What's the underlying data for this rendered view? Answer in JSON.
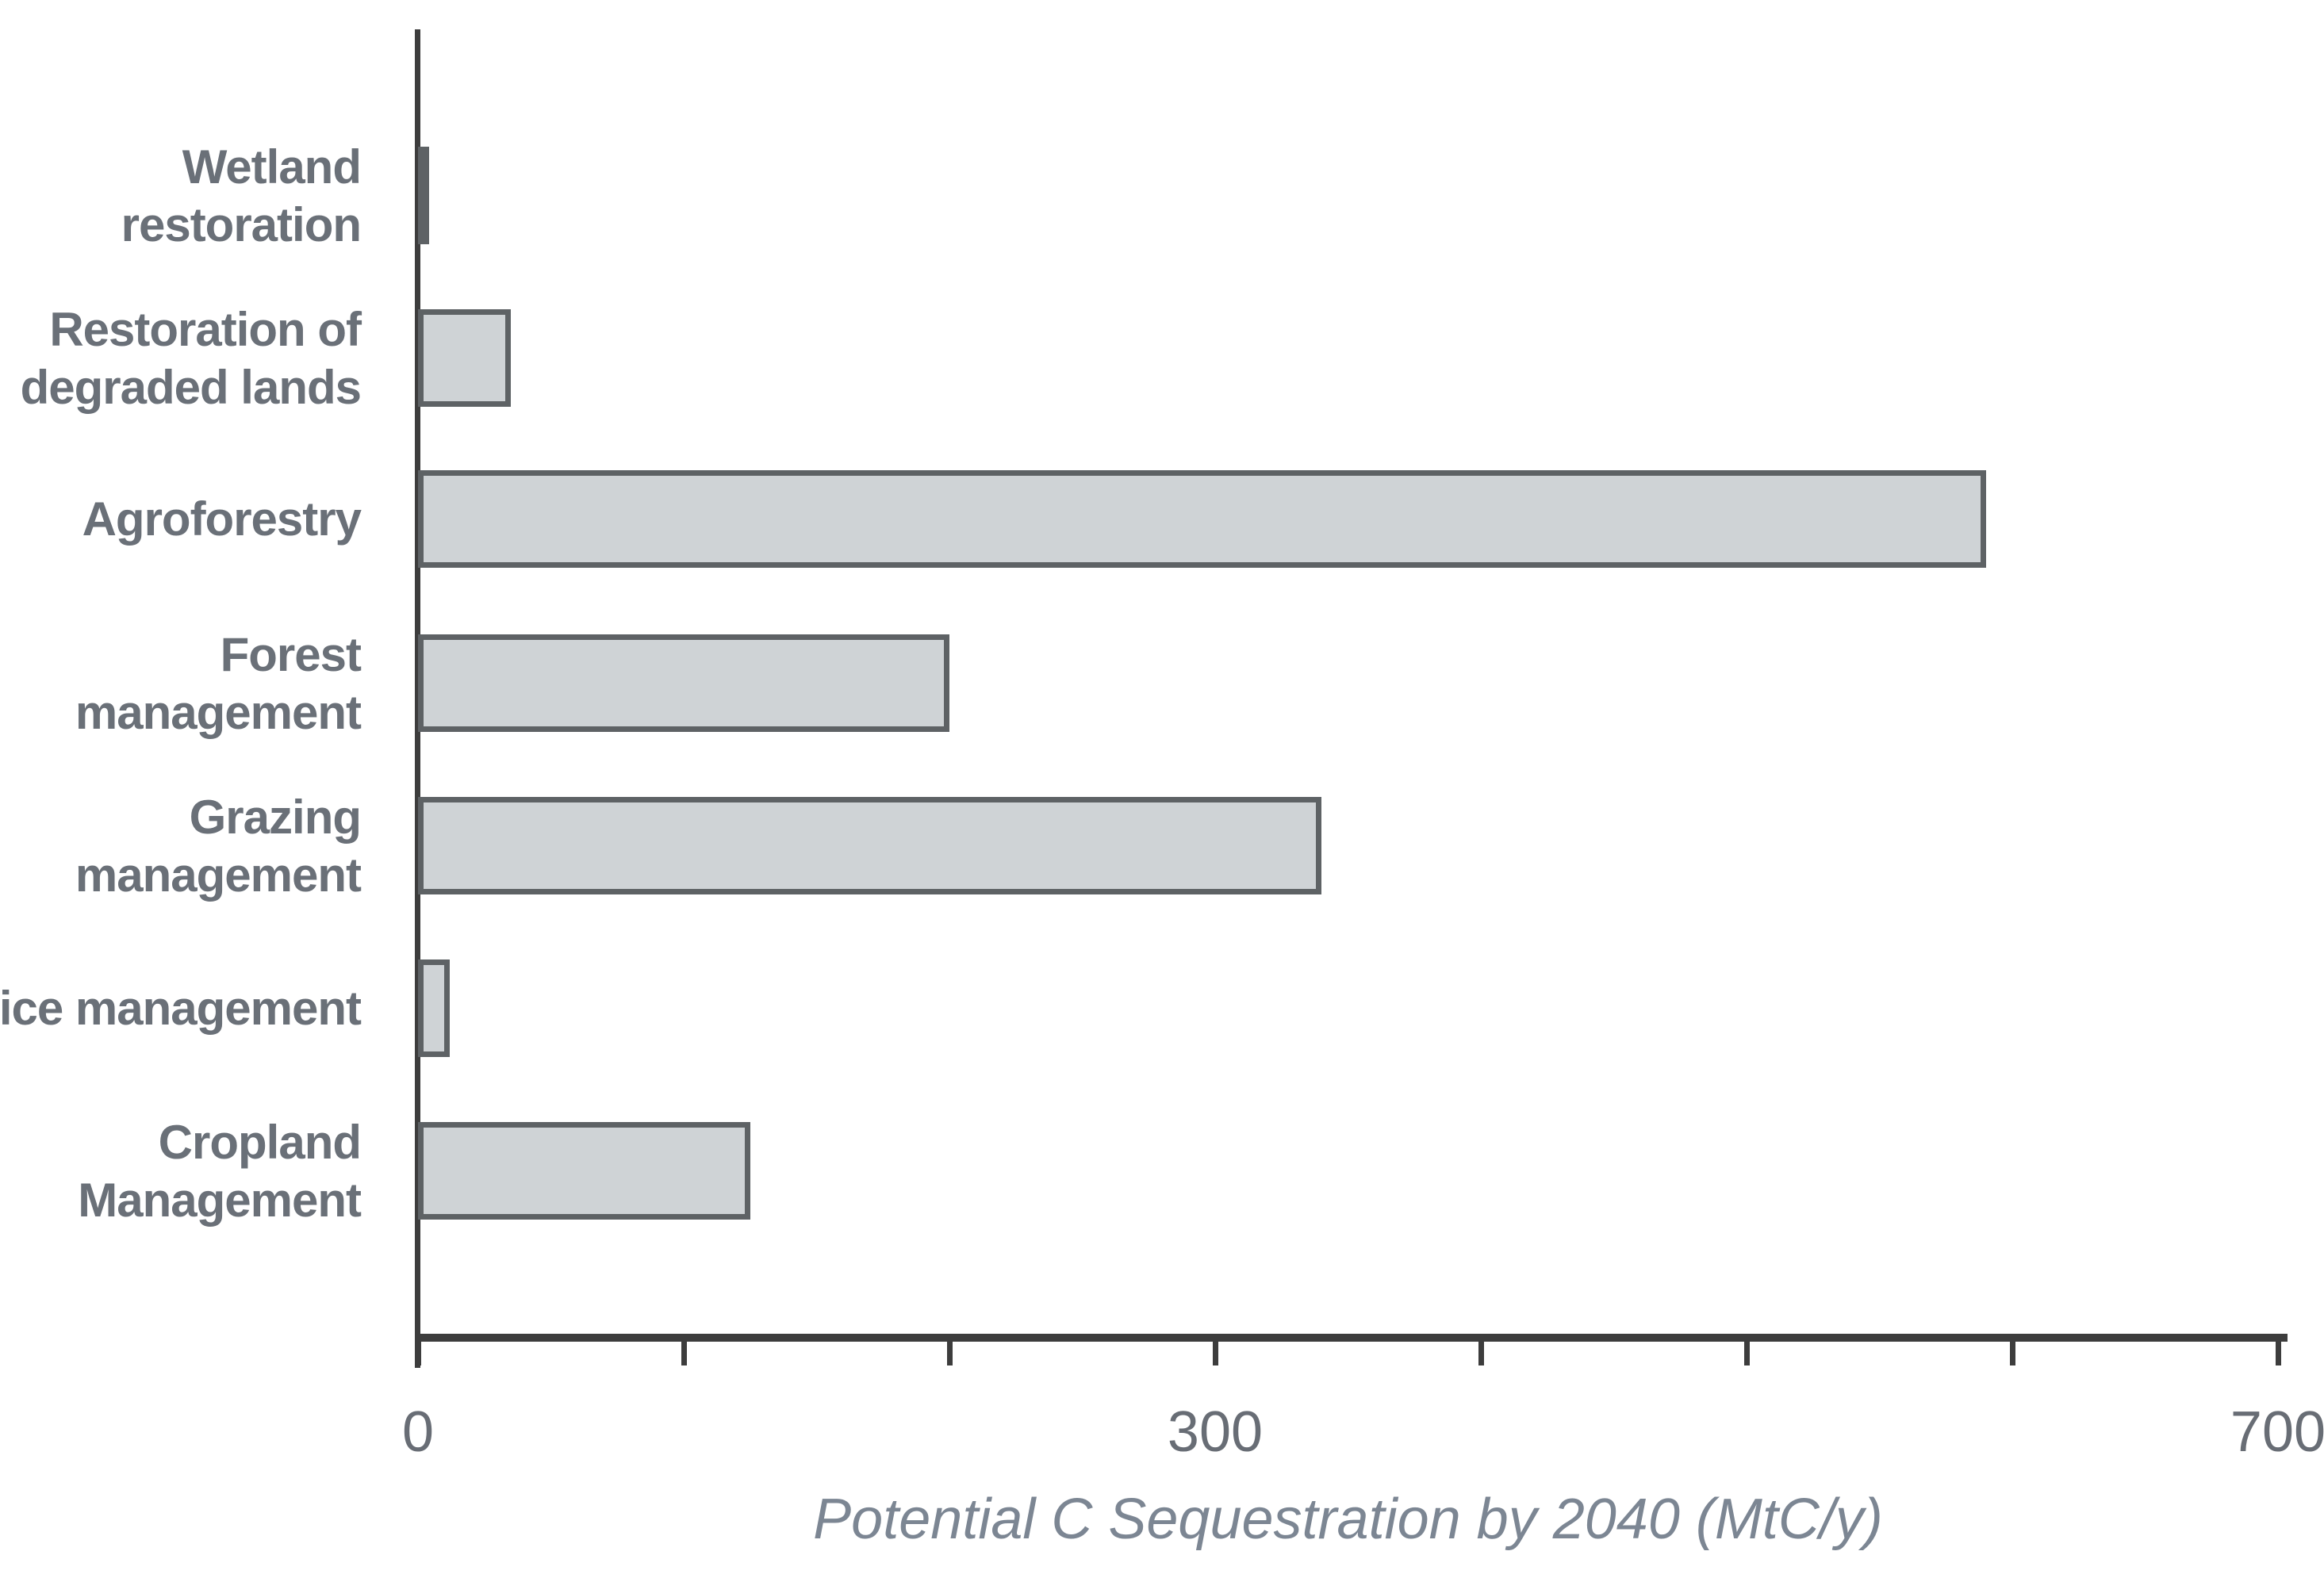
{
  "chart_data": {
    "type": "bar",
    "orientation": "horizontal",
    "title": "",
    "xlabel": "Potential C Sequestration by 2040 (MtC/y)",
    "ylabel": "",
    "categories": [
      "Wetland restoration",
      "Restoration of degraded lands",
      "Agroforestry",
      "Forest management",
      "Grazing management",
      "Rice management",
      "Cropland Management"
    ],
    "category_display": [
      "Wetland\nrestoration",
      "Restoration of\ndegraded lands",
      "Agroforestry",
      "Forest\nmanagement",
      "Grazing\nmanagement",
      "Rice management",
      "Cropland\nManagement"
    ],
    "values": [
      2,
      35,
      590,
      200,
      340,
      12,
      125
    ],
    "xlim": [
      0,
      700
    ],
    "xticks": [
      0,
      100,
      200,
      300,
      400,
      500,
      600,
      700
    ],
    "xtick_labels": [
      "0",
      "",
      "",
      "300",
      "",
      "",
      "",
      "700"
    ],
    "grid": false,
    "legend": "none",
    "colors": {
      "bar_fill": "#cfd3d6",
      "bar_border": "#5e6265",
      "axis": "#3d3d3d",
      "tick_text": "#686d75",
      "category_text": "#6a7078",
      "title_text": "#7c8693"
    }
  }
}
